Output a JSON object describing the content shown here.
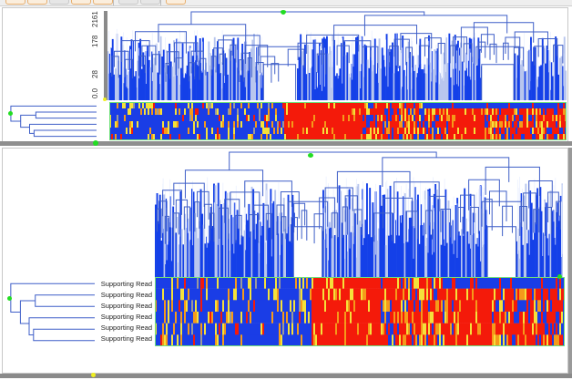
{
  "app": {
    "toolbar": {
      "buttons": [
        {
          "name": "tool-1",
          "style": "orange"
        },
        {
          "name": "tool-2",
          "style": "orange"
        },
        {
          "name": "tool-3",
          "style": "gray"
        },
        {
          "name": "tool-4",
          "style": "orange"
        },
        {
          "name": "tool-5",
          "style": "orange"
        },
        {
          "name": "tool-6",
          "style": "gray"
        },
        {
          "name": "tool-7",
          "style": "gray"
        },
        {
          "name": "tool-8",
          "style": "orange"
        }
      ]
    }
  },
  "colors": {
    "tree": "#3f5fc8",
    "tree_light": "#b8c6ee",
    "bar_fill": "#1440e8",
    "heat_low": "#1a3de6",
    "heat_mid": "#f5e13a",
    "heat_orange": "#f59a1a",
    "heat_high": "#f41a0a",
    "gray": "#9a9a9a",
    "marker_green": "#22dd22",
    "marker_yellow": "#f0f020",
    "border_green": "#6ee07a"
  },
  "top_view": {
    "y_axis_ticks": [
      "2161",
      "178",
      "28",
      "0.0"
    ],
    "row_count": 6,
    "heatmap_segments": [
      {
        "start": 0.0,
        "end": 0.34,
        "dominant": "low"
      },
      {
        "start": 0.34,
        "end": 0.72,
        "dominant": "high"
      },
      {
        "start": 0.72,
        "end": 0.82,
        "dominant": "high_pure"
      },
      {
        "start": 0.82,
        "end": 1.0,
        "dominant": "mixed"
      }
    ]
  },
  "bottom_view": {
    "row_labels": [
      "Supporting Read",
      "Supporting Read",
      "Supporting Read",
      "Supporting Read",
      "Supporting Read",
      "Supporting Read"
    ],
    "row_count": 6
  },
  "chart_data": {
    "type": "heatmap",
    "title": "",
    "description": "Hierarchically clustered heatmap with column dendrogram (top) and row dendrogram (left), shown in two linked views",
    "y_axis_ticks": [
      "0.0",
      "28",
      "178",
      "2161"
    ],
    "rows": [
      "Supporting Read",
      "Supporting Read",
      "Supporting Read",
      "Supporting Read",
      "Supporting Read",
      "Supporting Read"
    ],
    "color_scale": [
      "blue (low)",
      "yellow",
      "orange",
      "red (high)"
    ],
    "column_blocks": [
      {
        "fraction_start": 0.0,
        "fraction_end": 0.38,
        "predominant": "blue with yellow/orange streaks"
      },
      {
        "fraction_start": 0.38,
        "fraction_end": 0.55,
        "predominant": "red"
      },
      {
        "fraction_start": 0.55,
        "fraction_end": 0.72,
        "predominant": "mixed red/blue/yellow"
      },
      {
        "fraction_start": 0.72,
        "fraction_end": 0.82,
        "predominant": "red"
      },
      {
        "fraction_start": 0.82,
        "fraction_end": 1.0,
        "predominant": "mixed red/blue/yellow"
      }
    ],
    "row_dendrogram": "((r1),((r2,r3),(r4,(r5,r6))))"
  }
}
